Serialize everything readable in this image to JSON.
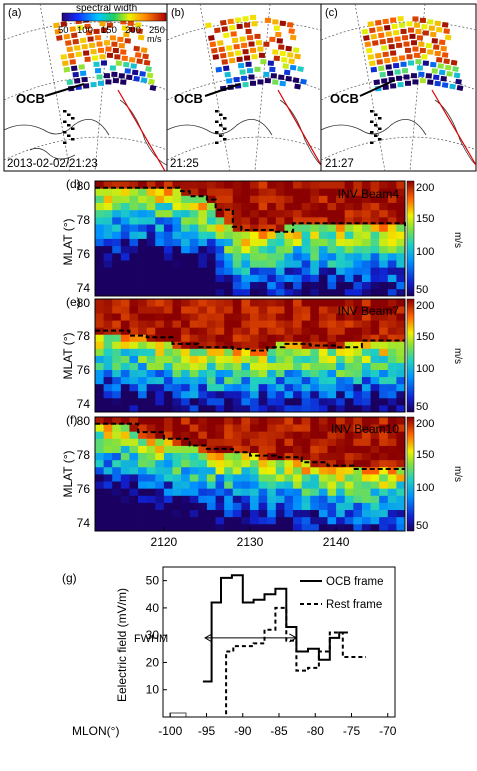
{
  "map_panels": [
    {
      "label": "(a)",
      "time": "2013-02-02/21:23",
      "ocb_label": "OCB"
    },
    {
      "label": "(b)",
      "time": "21:25",
      "ocb_label": "OCB"
    },
    {
      "label": "(c)",
      "time": "21:27",
      "ocb_label": "OCB"
    }
  ],
  "map_colorbar": {
    "title": "spectral width",
    "ticks": [
      "50",
      "100",
      "150",
      "200",
      "250"
    ],
    "unit": "m/s"
  },
  "colors": {
    "heat_low": "#1a1a8a",
    "heat_mid": "#20c0c0",
    "heat_high": "#8b0000",
    "ocb_line": "#000000",
    "beam_line": "#e00000"
  },
  "chart_data": [
    {
      "type": "heatmap",
      "panel": "(d)",
      "annotation": "INV Beam4",
      "ylabel": "MLAT (°)",
      "yticks": [
        "80",
        "78",
        "76",
        "74"
      ],
      "ylim": [
        73.5,
        80.3
      ],
      "xlim": [
        2112,
        2148
      ],
      "colorbar": {
        "ticks": [
          "200",
          "150",
          "100",
          "50"
        ],
        "unit": "m/s",
        "range": [
          50,
          200
        ]
      },
      "ocb_x": [
        2112,
        2121,
        2122,
        2123,
        2125,
        2126,
        2128,
        2129,
        2133,
        2135,
        2148
      ],
      "ocb_y": [
        79.9,
        79.9,
        79.7,
        79.4,
        79.2,
        78.6,
        77.6,
        77.4,
        77.3,
        77.8,
        77.6
      ]
    },
    {
      "type": "heatmap",
      "panel": "(e)",
      "annotation": "INV Beam7",
      "ylabel": "MLAT (°)",
      "yticks": [
        "80",
        "78",
        "76",
        "74"
      ],
      "ylim": [
        73.5,
        80.3
      ],
      "xlim": [
        2112,
        2148
      ],
      "colorbar": {
        "ticks": [
          "200",
          "150",
          "100",
          "50"
        ],
        "unit": "m/s",
        "range": [
          50,
          200
        ]
      },
      "ocb_x": [
        2112,
        2116,
        2118,
        2121,
        2124,
        2128,
        2130,
        2132,
        2134,
        2137,
        2140,
        2143,
        2148
      ],
      "ocb_y": [
        78.4,
        78.1,
        78.0,
        77.6,
        77.4,
        77.3,
        77.2,
        77.4,
        77.6,
        77.5,
        77.4,
        77.8,
        77.8
      ]
    },
    {
      "type": "heatmap",
      "panel": "(f)",
      "annotation": "INV Beam10",
      "ylabel": "MLAT (°)",
      "yticks": [
        "80",
        "78",
        "76",
        "74"
      ],
      "ylim": [
        73.5,
        80.3
      ],
      "xlim": [
        2112,
        2148
      ],
      "colorbar": {
        "ticks": [
          "200",
          "150",
          "100",
          "50"
        ],
        "unit": "m/s",
        "range": [
          50,
          200
        ]
      },
      "xticks": [
        "2120",
        "2130",
        "2140"
      ],
      "xtick_values": [
        2120,
        2130,
        2140
      ],
      "ocb_x": [
        2112,
        2115,
        2117,
        2120,
        2123,
        2125,
        2128,
        2130,
        2133,
        2136,
        2139,
        2142,
        2148
      ],
      "ocb_y": [
        79.9,
        79.9,
        79.4,
        79.0,
        78.6,
        78.4,
        78.2,
        78.0,
        77.9,
        77.6,
        77.4,
        77.2,
        77.2
      ]
    },
    {
      "type": "line",
      "panel": "(g)",
      "ylabel": "Eelectric field (mV/m)",
      "xaxis_prefix": "MLON(°)",
      "xticks": [
        "-100",
        "-95",
        "-90",
        "-85",
        "-80",
        "-75",
        "-70"
      ],
      "xtick_values": [
        -100,
        -95,
        -90,
        -85,
        -80,
        -75,
        -70
      ],
      "yticks": [
        "10",
        "20",
        "30",
        "40",
        "50"
      ],
      "ytick_values": [
        10,
        20,
        30,
        40,
        50
      ],
      "xlim": [
        -101,
        -69
      ],
      "ylim": [
        0,
        55
      ],
      "annotation": "FWHM",
      "fwhm_x": [
        -95.2,
        -82.6
      ],
      "fwhm_y": 29,
      "series": [
        {
          "name": "OCB frame",
          "style": "solid",
          "x": [
            -95.5,
            -94.3,
            -94.3,
            -93.0,
            -93.0,
            -91.5,
            -91.5,
            -90.0,
            -90.0,
            -88.5,
            -88.5,
            -87.0,
            -87.0,
            -85.5,
            -85.5,
            -84.0,
            -84.0,
            -82.6,
            -82.6,
            -81.0,
            -81.0,
            -79.5,
            -79.5,
            -78.0,
            -78.0,
            -76.7,
            -76.7,
            -75.5
          ],
          "y": [
            13,
            13,
            42,
            42,
            51,
            51,
            52,
            52,
            42,
            42,
            43,
            43,
            45,
            45,
            47,
            47,
            33,
            33,
            24,
            24,
            25,
            25,
            21,
            21,
            29,
            29,
            31,
            31
          ]
        },
        {
          "name": "Rest frame",
          "style": "dashed",
          "x": [
            -92.3,
            -92.3,
            -91.3,
            -91.3,
            -88.5,
            -88.5,
            -87.0,
            -87.0,
            -85.5,
            -85.5,
            -84.0,
            -84.0,
            -82.6,
            -82.6,
            -81.0,
            -81.0,
            -79.5,
            -79.5,
            -78.0,
            -78.0,
            -76.2,
            -76.2,
            -73.0
          ],
          "y": [
            1,
            24,
            24,
            26,
            26,
            27,
            27,
            32,
            32,
            40,
            40,
            28,
            28,
            17,
            17,
            18,
            18,
            24,
            24,
            31,
            31,
            22,
            22
          ]
        }
      ]
    }
  ]
}
